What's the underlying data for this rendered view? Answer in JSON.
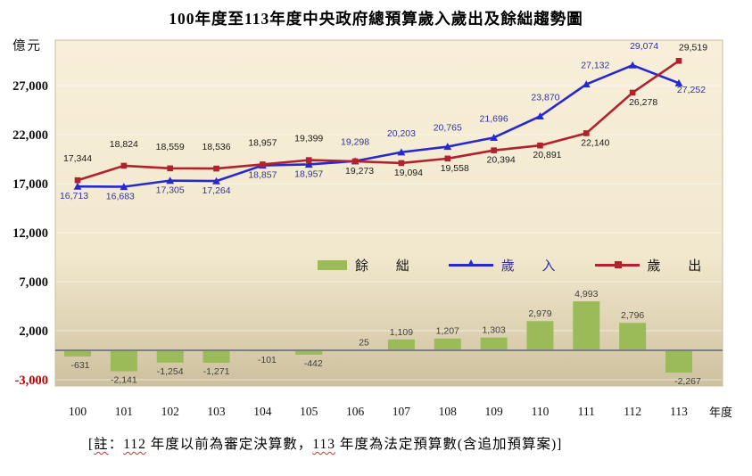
{
  "page": {
    "title": "100年度至113年度中央政府總預算歲入歲出及餘絀趨勢圖"
  },
  "chart_data": {
    "type": "combo-bar-line",
    "title": "100年度至113年度中央政府總預算歲入歲出及餘絀趨勢圖",
    "y_unit_label": "億元",
    "x_axis_label": "年度",
    "categories": [
      "100",
      "101",
      "102",
      "103",
      "104",
      "105",
      "106",
      "107",
      "108",
      "109",
      "110",
      "111",
      "112",
      "113"
    ],
    "series": [
      {
        "name": "餘絀",
        "type": "bar",
        "color": "#9BBB59",
        "values": [
          -631,
          -2141,
          -1254,
          -1271,
          -101,
          -442,
          25,
          1109,
          1207,
          1303,
          2979,
          4993,
          2796,
          -2267
        ],
        "label_color": "#3F3F3F",
        "label_dx": [
          3,
          0,
          0,
          0,
          5,
          5,
          10,
          0,
          0,
          0,
          0,
          0,
          0,
          10
        ]
      },
      {
        "name": "歲入",
        "type": "line",
        "marker": "triangle",
        "color": "#2828D0",
        "label_color": "#333399",
        "values": [
          16713,
          16683,
          17305,
          17264,
          18857,
          18957,
          19298,
          20203,
          20765,
          21696,
          23870,
          27132,
          29074,
          27252
        ],
        "label_side": [
          "below",
          "below",
          "below",
          "below",
          "below",
          "below",
          "above",
          "above",
          "above",
          "above",
          "above",
          "above",
          "above",
          "below"
        ],
        "label_dx": [
          -4,
          -4,
          0,
          0,
          0,
          0,
          0,
          0,
          0,
          0,
          6,
          10,
          13,
          14
        ],
        "label_dy": [
          0,
          0,
          0,
          0,
          0,
          0,
          0,
          0,
          0,
          0,
          0,
          0,
          0,
          -3
        ]
      },
      {
        "name": "歲出",
        "type": "line",
        "marker": "square",
        "color": "#B0232E",
        "label_color": "#1A1A1A",
        "values": [
          17344,
          18824,
          18559,
          18536,
          18957,
          19399,
          19273,
          19094,
          19558,
          20394,
          20891,
          22140,
          26278,
          29519
        ],
        "label_side": [
          "above",
          "above",
          "above",
          "above",
          "above",
          "above",
          "below",
          "below",
          "below",
          "below",
          "below",
          "below",
          "below",
          "above"
        ],
        "label_dx": [
          0,
          0,
          0,
          0,
          0,
          0,
          5,
          8,
          8,
          8,
          8,
          10,
          12,
          16
        ],
        "label_dy": [
          -3,
          -3,
          -3,
          -3,
          -3,
          -3,
          0,
          0,
          0,
          0,
          0,
          0,
          0,
          6
        ]
      }
    ],
    "y_ticks": [
      27000,
      22000,
      17000,
      12000,
      7000,
      2000,
      -3000
    ],
    "ylim": [
      -3600,
      31600
    ],
    "grid": true,
    "legend_position": "inside-middle-right",
    "colors": {
      "bar_green": "#9BBB59",
      "revenue_blue": "#2828D0",
      "expenditure_red": "#B0232E",
      "revenue_label_blue": "#333399",
      "negative_tick_red": "#C00000",
      "zero_line_gray": "#7F7F7F",
      "plot_bg_top": "#F8EFDA",
      "plot_bg_bottom": "#CCC09E"
    }
  },
  "legend": {
    "surplus": "餘 絀",
    "revenue": "歲 入",
    "expenditure": "歲 出"
  },
  "note": {
    "segments": [
      {
        "t": "[",
        "w": false
      },
      {
        "t": "註",
        "w": true
      },
      {
        "t": "：",
        "w": false
      },
      {
        "t": "112",
        "w": true
      },
      {
        "t": " 年度以前為審定決算數，",
        "w": false
      },
      {
        "t": "113",
        "w": true
      },
      {
        "t": " 年度為法定預算數(含追加預算案)",
        "w": false
      },
      {
        "t": "]",
        "w": false
      }
    ]
  }
}
